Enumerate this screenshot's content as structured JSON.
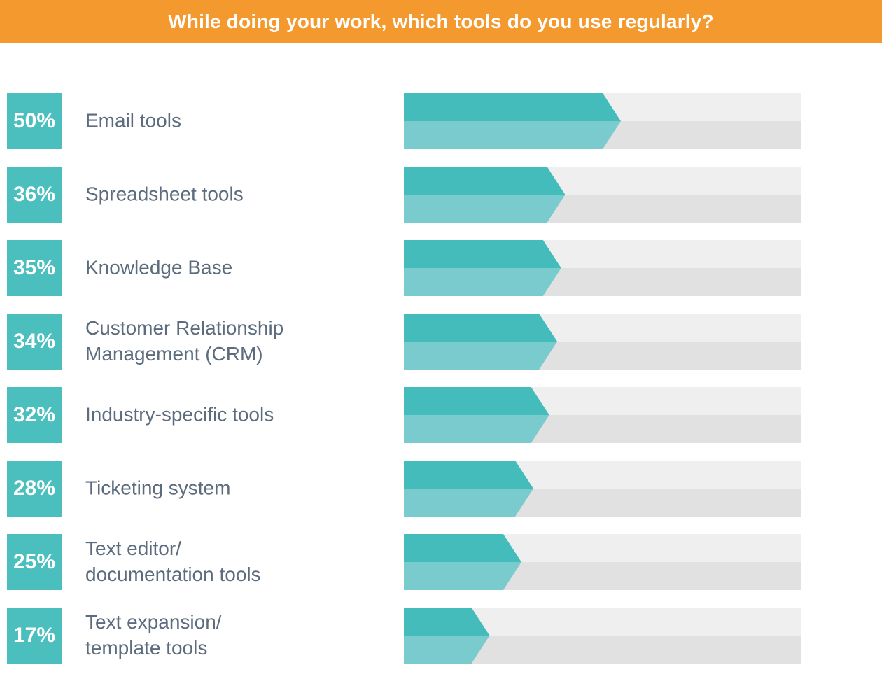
{
  "header": {
    "title": "While doing your work, which tools do you use regularly?"
  },
  "colors": {
    "banner_bg": "#F4992E",
    "banner_text": "#FFFFFF",
    "badge_bg": "#4BBEBE",
    "badge_text": "#FFFFFF",
    "bar_fill_top": "#45BCBC",
    "bar_fill_bottom": "#7ACBCE",
    "track_top": "#EFEFEF",
    "track_bottom": "#E1E1E1",
    "label_text": "#5C6C7D"
  },
  "chart_data": {
    "type": "bar",
    "orientation": "horizontal",
    "title": "While doing your work, which tools do you use regularly?",
    "unit": "%",
    "xlim": [
      0,
      100
    ],
    "grid": false,
    "legend": false,
    "categories": [
      "Email tools",
      "Spreadsheet tools",
      "Knowledge Base",
      "Customer Relationship Management (CRM)",
      "Industry-specific tools",
      "Ticketing system",
      "Text editor/ documentation tools",
      "Text expansion/ template tools"
    ],
    "values": [
      50,
      36,
      35,
      34,
      32,
      28,
      25,
      17
    ],
    "rows": [
      {
        "pct_label": "50%",
        "value": 50,
        "label": "Email tools"
      },
      {
        "pct_label": "36%",
        "value": 36,
        "label": "Spreadsheet tools"
      },
      {
        "pct_label": "35%",
        "value": 35,
        "label": "Knowledge Base"
      },
      {
        "pct_label": "34%",
        "value": 34,
        "label": "Customer Relationship\nManagement (CRM)"
      },
      {
        "pct_label": "32%",
        "value": 32,
        "label": "Industry-specific tools"
      },
      {
        "pct_label": "28%",
        "value": 28,
        "label": "Ticketing system"
      },
      {
        "pct_label": "25%",
        "value": 25,
        "label": "Text editor/\ndocumentation tools"
      },
      {
        "pct_label": "17%",
        "value": 17,
        "label": "Text expansion/\ntemplate tools"
      }
    ]
  }
}
